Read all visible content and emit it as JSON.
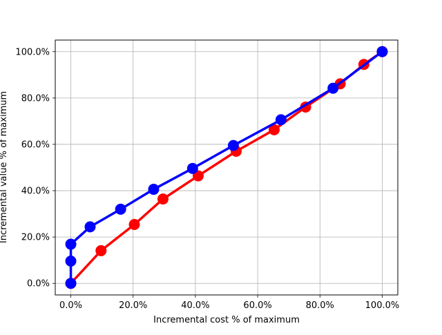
{
  "chart_data": {
    "type": "line",
    "title": "",
    "xlabel": "Incremental cost % of maximum",
    "ylabel": "Incremental value % of maximum",
    "xlim": [
      -5.0,
      105.0
    ],
    "ylim": [
      -5.0,
      105.0
    ],
    "grid": true,
    "legend": "none",
    "x_ticks": [
      0,
      20,
      40,
      60,
      80,
      100
    ],
    "x_tick_labels": [
      "0.0%",
      "20.0%",
      "40.0%",
      "60.0%",
      "80.0%",
      "100.0%"
    ],
    "y_ticks": [
      0,
      20,
      40,
      60,
      80,
      100
    ],
    "y_tick_labels": [
      "0.0%",
      "20.0%",
      "40.0%",
      "60.0%",
      "80.0%",
      "100.0%"
    ],
    "series": [
      {
        "color": "#ff0000",
        "x": [
          0.0,
          9.7,
          20.4,
          29.6,
          40.9,
          53.1,
          65.3,
          75.4,
          86.5,
          94.1,
          100.0
        ],
        "y": [
          0.0,
          14.1,
          25.4,
          36.4,
          46.4,
          57.0,
          66.3,
          76.1,
          86.1,
          94.5,
          100.0
        ]
      },
      {
        "color": "#0000ff",
        "x": [
          0.0,
          0.0,
          0.0,
          6.2,
          16.0,
          26.6,
          39.1,
          52.2,
          67.5,
          84.2,
          100.0
        ],
        "y": [
          0.0,
          9.6,
          16.9,
          24.4,
          32.0,
          40.6,
          49.6,
          59.5,
          70.6,
          84.2,
          100.0
        ]
      }
    ]
  }
}
